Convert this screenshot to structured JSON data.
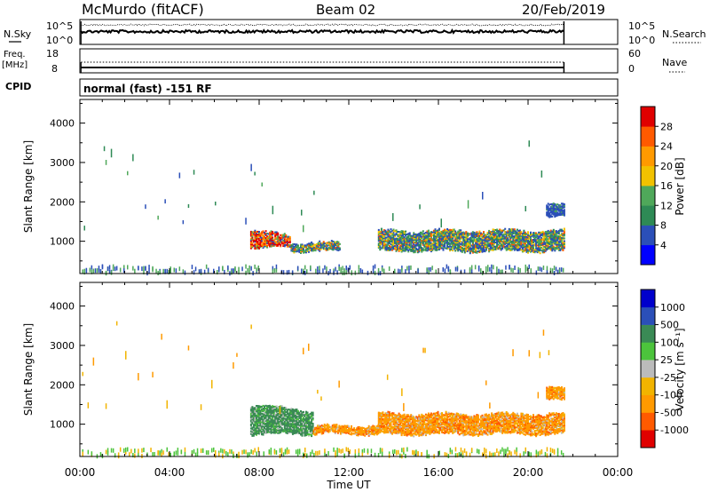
{
  "header": {
    "station": "McMurdo (fitACF)",
    "beam": "Beam 02",
    "date": "20/Feb/2019"
  },
  "panels": {
    "nsky": {
      "left_label": "N.Sky",
      "right_label": "N.Search",
      "left_ticks": [
        "10^5",
        "10^0"
      ],
      "right_ticks": [
        "10^5",
        "10^0"
      ]
    },
    "freq": {
      "left_label_1": "Freq.",
      "left_label_2": "[MHz]",
      "right_label": "Nave",
      "left_ticks": [
        "18",
        "8"
      ],
      "right_ticks": [
        "60",
        "0"
      ]
    },
    "cpid": {
      "label": "CPID",
      "value": "normal (fast) -151 RF"
    }
  },
  "chart_data": [
    {
      "type": "heatmap",
      "name": "power",
      "ylabel": "Slant Range [km]",
      "xlabel": "",
      "ylim": [
        180,
        4600
      ],
      "xlim": [
        0,
        24
      ],
      "y_ticks": [
        "4000",
        "3000",
        "2000",
        "1000"
      ],
      "colorbar": {
        "label": "Power [dB]",
        "ticks": [
          "28",
          "24",
          "20",
          "16",
          "12",
          "8",
          "4"
        ],
        "colors": [
          "#0000ff",
          "#2b4fb8",
          "#2e8a55",
          "#4fa85a",
          "#f2c200",
          "#ff9a00",
          "#ff5a00",
          "#e00000"
        ]
      },
      "bands": [
        {
          "t": [
            7.6,
            9.4
          ],
          "r": [
            850,
            1300
          ],
          "level": "high"
        },
        {
          "t": [
            9.4,
            11.6
          ],
          "r": [
            750,
            950
          ],
          "level": "mid"
        },
        {
          "t": [
            13.3,
            21.6
          ],
          "r": [
            750,
            1250
          ],
          "level": "mid"
        },
        {
          "t": [
            20.8,
            21.6
          ],
          "r": [
            1600,
            1900
          ],
          "level": "low"
        }
      ]
    },
    {
      "type": "heatmap",
      "name": "velocity",
      "ylabel": "Slant Range [km]",
      "xlabel": "Time UT",
      "ylim": [
        180,
        4600
      ],
      "xlim": [
        0,
        24
      ],
      "y_ticks": [
        "4000",
        "3000",
        "2000",
        "1000"
      ],
      "x_ticks": [
        "00:00",
        "04:00",
        "08:00",
        "12:00",
        "16:00",
        "20:00",
        "00:00"
      ],
      "colorbar": {
        "label": "Velocity [m s⁻¹]",
        "ticks": [
          "1000",
          "500",
          "100",
          "25",
          "-25",
          "-100",
          "-500",
          "-1000"
        ],
        "colors": [
          "#e00000",
          "#ff5a00",
          "#ff9a00",
          "#f2b400",
          "#bbbbbb",
          "#4cc43c",
          "#3a8a55",
          "#2b4fb8",
          "#0000cc"
        ]
      },
      "bands": [
        {
          "t": [
            7.6,
            10.4
          ],
          "r": [
            750,
            1500
          ],
          "v": "+100"
        },
        {
          "t": [
            10.4,
            13.3
          ],
          "r": [
            750,
            950
          ],
          "v": "-100"
        },
        {
          "t": [
            13.3,
            21.6
          ],
          "r": [
            750,
            1250
          ],
          "v": "-100"
        },
        {
          "t": [
            20.8,
            21.6
          ],
          "r": [
            1600,
            1900
          ],
          "v": "-100"
        }
      ]
    }
  ]
}
